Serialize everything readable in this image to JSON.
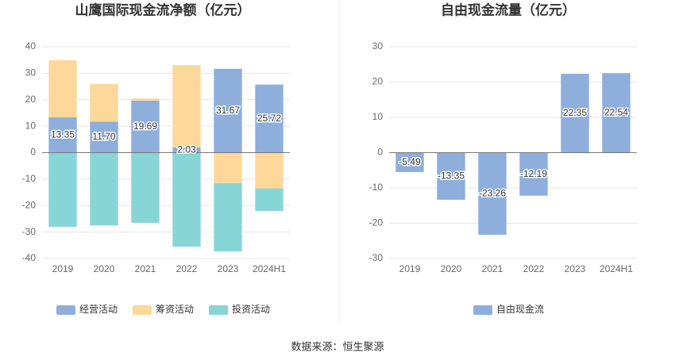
{
  "chart_data": [
    {
      "type": "bar",
      "stacked": true,
      "title": "山鹰国际现金流净额（亿元）",
      "categories": [
        "2019",
        "2020",
        "2021",
        "2022",
        "2023",
        "2024H1"
      ],
      "series": [
        {
          "name": "经营活动",
          "color": "#8eaedc",
          "values": [
            13.35,
            11.7,
            19.69,
            2.03,
            31.67,
            25.72
          ],
          "value_labels": [
            "13.35",
            "11.70",
            "19.69",
            "2.03",
            "31.67",
            "25.72"
          ]
        },
        {
          "name": "筹资活动",
          "color": "#fdd89a",
          "values": [
            21.6,
            14.3,
            0.8,
            31.0,
            -11.5,
            -13.5
          ]
        },
        {
          "name": "投资活动",
          "color": "#88d5d8",
          "values": [
            -28.0,
            -27.5,
            -26.5,
            -35.5,
            -25.8,
            -8.5
          ]
        }
      ],
      "ylim": [
        -40,
        40
      ],
      "yticks": [
        -40,
        -30,
        -20,
        -10,
        0,
        10,
        20,
        30,
        40
      ],
      "grid": true,
      "legend": "bottom"
    },
    {
      "type": "bar",
      "title": "自由现金流量（亿元）",
      "categories": [
        "2019",
        "2020",
        "2021",
        "2022",
        "2023",
        "2024H1"
      ],
      "series": [
        {
          "name": "自由现金流",
          "color": "#8eaedc",
          "values": [
            -5.49,
            -13.35,
            -23.26,
            -12.19,
            22.35,
            22.54
          ]
        }
      ],
      "ylim": [
        -30,
        30
      ],
      "yticks": [
        -30,
        -20,
        -10,
        0,
        10,
        20,
        30
      ],
      "grid": true,
      "legend": "bottom"
    }
  ],
  "source": "数据来源：恒生聚源"
}
